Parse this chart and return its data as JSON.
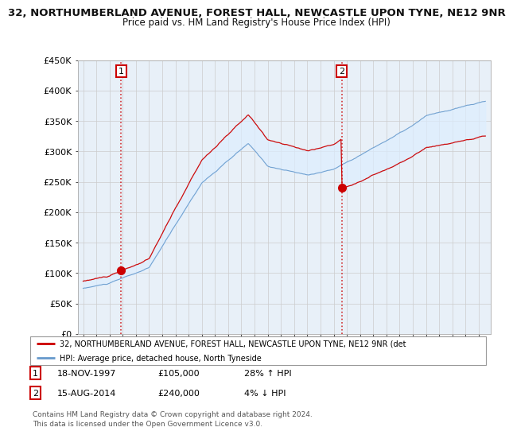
{
  "title": "32, NORTHUMBERLAND AVENUE, FOREST HALL, NEWCASTLE UPON TYNE, NE12 9NR",
  "subtitle": "Price paid vs. HM Land Registry's House Price Index (HPI)",
  "legend_line1": "32, NORTHUMBERLAND AVENUE, FOREST HALL, NEWCASTLE UPON TYNE, NE12 9NR (det",
  "legend_line2": "HPI: Average price, detached house, North Tyneside",
  "sale1_date": "18-NOV-1997",
  "sale1_price": 105000,
  "sale1_hpi_pct": "28% ↑ HPI",
  "sale2_date": "15-AUG-2014",
  "sale2_price": 240000,
  "sale2_hpi_pct": "4% ↓ HPI",
  "footer1": "Contains HM Land Registry data © Crown copyright and database right 2024.",
  "footer2": "This data is licensed under the Open Government Licence v3.0.",
  "ylim": [
    0,
    450000
  ],
  "yticks": [
    0,
    50000,
    100000,
    150000,
    200000,
    250000,
    300000,
    350000,
    400000,
    450000
  ],
  "ytick_labels": [
    "£0",
    "£50K",
    "£100K",
    "£150K",
    "£200K",
    "£250K",
    "£300K",
    "£350K",
    "£400K",
    "£450K"
  ],
  "red_color": "#cc0000",
  "blue_color": "#6699cc",
  "fill_color": "#ddeeff",
  "background_color": "#ffffff",
  "grid_color": "#cccccc",
  "sale1_year": 1997.88,
  "sale2_year": 2014.62,
  "chart_bg": "#e8f0f8"
}
